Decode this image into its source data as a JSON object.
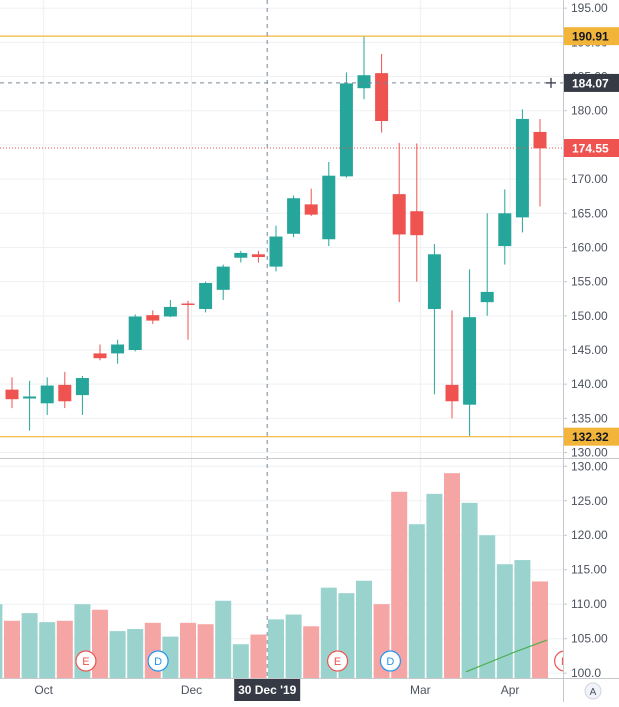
{
  "colors": {
    "up": "#26a69a",
    "down": "#ef5350",
    "up_volume": "#9ad3ce",
    "down_volume": "#f5a5a4",
    "level_line": "#f2b53a",
    "last_price": "#ef5350",
    "crosshair_label": "#363a45",
    "ma_line": "#4caf50",
    "grid": "#eef0f3",
    "axis_text": "#4c525e"
  },
  "chart_data": [
    {
      "type": "candlestick",
      "price_axis": {
        "range": [
          129.2,
          196.2
        ],
        "ticks": [
          "195.00",
          "190.00",
          "185.00",
          "180.00",
          "175.00",
          "170.00",
          "165.00",
          "160.00",
          "155.00",
          "150.00",
          "145.00",
          "140.00",
          "135.00",
          "130.00"
        ],
        "tick_values": [
          195,
          190,
          185,
          180,
          175,
          170,
          165,
          160,
          155,
          150,
          145,
          140,
          135,
          130
        ]
      },
      "time_axis": {
        "labels": [
          "Oct",
          "Dec",
          "30 Dec '19",
          "Mar",
          "Apr"
        ],
        "label_positions": [
          1.8,
          10.2,
          14.5,
          23.2,
          28.3
        ]
      },
      "candles": [
        {
          "i": 0,
          "o": 139.2,
          "h": 141.0,
          "l": 136.5,
          "c": 137.8
        },
        {
          "i": 1,
          "o": 137.9,
          "h": 140.5,
          "l": 133.2,
          "c": 138.2
        },
        {
          "i": 2,
          "o": 137.2,
          "h": 141.0,
          "l": 135.5,
          "c": 139.8
        },
        {
          "i": 3,
          "o": 139.9,
          "h": 141.8,
          "l": 136.5,
          "c": 137.5
        },
        {
          "i": 4,
          "o": 138.4,
          "h": 141.2,
          "l": 135.5,
          "c": 140.9
        },
        {
          "i": 5,
          "o": 144.5,
          "h": 145.8,
          "l": 143.5,
          "c": 143.8
        },
        {
          "i": 6,
          "o": 144.5,
          "h": 146.5,
          "l": 143.0,
          "c": 145.8
        },
        {
          "i": 7,
          "o": 145.0,
          "h": 150.2,
          "l": 144.8,
          "c": 149.9
        },
        {
          "i": 8,
          "o": 150.1,
          "h": 150.8,
          "l": 148.8,
          "c": 149.3
        },
        {
          "i": 9,
          "o": 149.9,
          "h": 152.3,
          "l": 149.8,
          "c": 151.3
        },
        {
          "i": 10,
          "o": 151.8,
          "h": 152.2,
          "l": 146.5,
          "c": 151.6
        },
        {
          "i": 11,
          "o": 151.0,
          "h": 155.0,
          "l": 150.5,
          "c": 154.8
        },
        {
          "i": 12,
          "o": 153.8,
          "h": 157.5,
          "l": 152.3,
          "c": 157.2
        },
        {
          "i": 13,
          "o": 158.5,
          "h": 159.5,
          "l": 157.8,
          "c": 159.2
        },
        {
          "i": 14,
          "o": 159.0,
          "h": 159.5,
          "l": 157.8,
          "c": 158.6
        },
        {
          "i": 15,
          "o": 157.2,
          "h": 163.2,
          "l": 156.5,
          "c": 161.6
        },
        {
          "i": 16,
          "o": 162.0,
          "h": 167.6,
          "l": 161.5,
          "c": 167.2
        },
        {
          "i": 17,
          "o": 166.3,
          "h": 168.6,
          "l": 164.6,
          "c": 164.8
        },
        {
          "i": 18,
          "o": 161.2,
          "h": 172.5,
          "l": 160.2,
          "c": 170.5
        },
        {
          "i": 19,
          "o": 170.4,
          "h": 185.6,
          "l": 170.2,
          "c": 184.0
        },
        {
          "i": 20,
          "o": 183.3,
          "h": 191.0,
          "l": 181.7,
          "c": 185.2
        },
        {
          "i": 21,
          "o": 185.5,
          "h": 188.3,
          "l": 176.8,
          "c": 178.5
        },
        {
          "i": 22,
          "o": 167.8,
          "h": 175.3,
          "l": 152.0,
          "c": 161.9
        },
        {
          "i": 23,
          "o": 165.3,
          "h": 175.2,
          "l": 155.0,
          "c": 161.8
        },
        {
          "i": 24,
          "o": 151.0,
          "h": 160.5,
          "l": 138.5,
          "c": 159.0
        },
        {
          "i": 25,
          "o": 139.9,
          "h": 150.8,
          "l": 135.0,
          "c": 137.5
        },
        {
          "i": 26,
          "o": 137.0,
          "h": 156.8,
          "l": 132.4,
          "c": 149.8
        },
        {
          "i": 27,
          "o": 152.0,
          "h": 165.0,
          "l": 150.0,
          "c": 153.5
        },
        {
          "i": 28,
          "o": 160.2,
          "h": 168.5,
          "l": 157.5,
          "c": 165.0
        },
        {
          "i": 29,
          "o": 164.4,
          "h": 180.2,
          "l": 162.2,
          "c": 178.8
        },
        {
          "i": 30,
          "o": 176.9,
          "h": 178.8,
          "l": 166.0,
          "c": 174.5
        }
      ],
      "levels": [
        {
          "value": 190.91,
          "label": "190.91"
        },
        {
          "value": 132.32,
          "label": "132.32"
        }
      ],
      "crosshair": {
        "index": 14.5,
        "price": 184.07,
        "price_label": "184.07",
        "time_label": "30 Dec '19"
      },
      "last_price": {
        "value": 174.55,
        "label": "174.55"
      }
    },
    {
      "type": "bar",
      "name": "volume",
      "axis": {
        "range": [
          99.3,
          131.2
        ],
        "ticks": [
          "130.00",
          "125.00",
          "120.00",
          "115.00",
          "110.00",
          "105.00",
          "100.0"
        ],
        "tick_values": [
          130,
          125,
          120,
          115,
          110,
          105,
          100
        ]
      },
      "values": [
        110.0,
        107.6,
        108.7,
        107.4,
        107.6,
        110.0,
        109.2,
        106.1,
        106.4,
        107.3,
        105.3,
        107.3,
        107.1,
        110.5,
        104.2,
        105.6,
        107.8,
        108.5,
        106.8,
        112.4,
        111.6,
        113.4,
        110.0,
        126.3,
        121.6,
        126.0,
        129.0,
        124.7,
        120.0,
        115.8,
        116.4,
        113.3
      ],
      "directions": [
        "up",
        "down",
        "up",
        "up",
        "down",
        "up",
        "down",
        "up",
        "up",
        "down",
        "up",
        "down",
        "down",
        "up",
        "up",
        "down",
        "up",
        "up",
        "down",
        "up",
        "up",
        "up",
        "down",
        "down",
        "up",
        "up",
        "down",
        "up",
        "up",
        "up",
        "up",
        "down"
      ],
      "ma_line": [
        {
          "i": 25.8,
          "v": 100.2
        },
        {
          "i": 28.5,
          "v": 103.0
        },
        {
          "i": 30.4,
          "v": 104.8
        }
      ],
      "event_markers": [
        {
          "i": 4.2,
          "text": "E",
          "kind": "earnings"
        },
        {
          "i": 8.3,
          "text": "D",
          "kind": "dividend"
        },
        {
          "i": 18.5,
          "text": "E",
          "kind": "earnings"
        },
        {
          "i": 21.5,
          "text": "D",
          "kind": "dividend"
        },
        {
          "i": 31.4,
          "text": "E",
          "kind": "earnings"
        }
      ]
    }
  ],
  "corner_label": "A"
}
